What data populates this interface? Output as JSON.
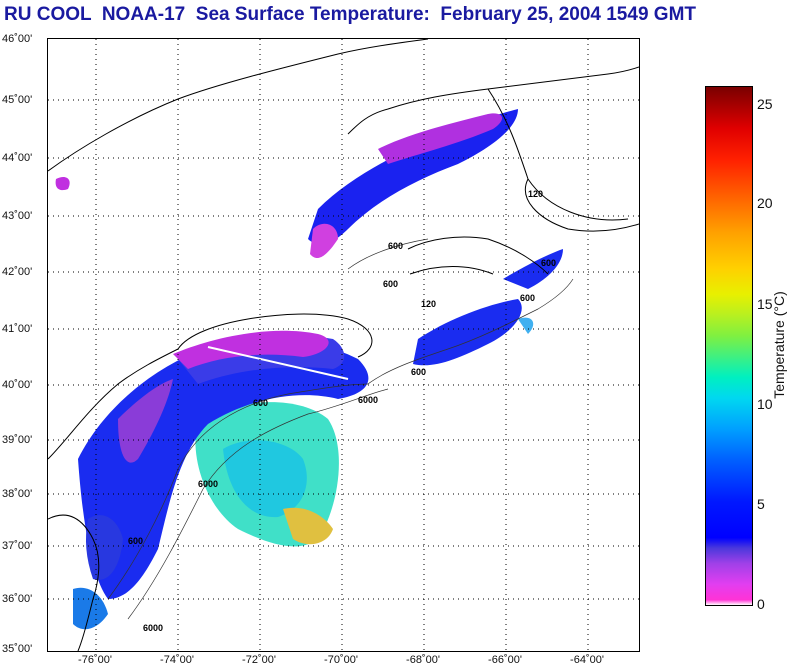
{
  "title": "RU COOL  NOAA-17  Sea Surface Temperature:  February 25, 2004 1549 GMT",
  "latitudes": [
    "46˚00'",
    "45˚00'",
    "44˚00'",
    "43˚00'",
    "42˚00'",
    "41˚00'",
    "40˚00'",
    "39˚00'",
    "38˚00'",
    "37˚00'",
    "36˚00'",
    "35˚00'"
  ],
  "longitudes": [
    "-76˚00'",
    "-74˚00'",
    "-72˚00'",
    "-70˚00'",
    "-68˚00'",
    "-66˚00'",
    "-64˚00'"
  ],
  "colorbar": {
    "label": "Temperature (°C)",
    "ticks": [
      "25",
      "20",
      "15",
      "10",
      "5",
      "0"
    ],
    "range": [
      0,
      26
    ]
  },
  "contour_labels": [
    "600",
    "600",
    "600",
    "6000",
    "6000",
    "600",
    "600",
    "600",
    "6000",
    "600",
    "120",
    "120"
  ],
  "colors": {
    "title": "#1a1aa0",
    "grid": "#000000",
    "coastline": "#000000"
  }
}
